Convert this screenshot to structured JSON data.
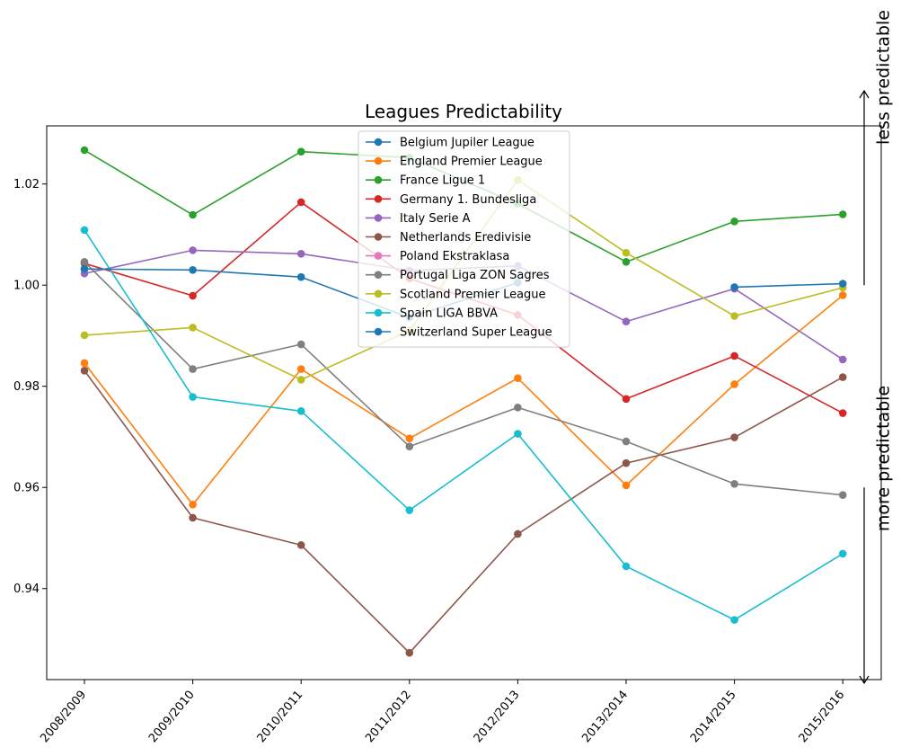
{
  "chart_data": {
    "type": "line",
    "title": "Leagues Predictability",
    "xlabel": "",
    "ylabel": "",
    "categories": [
      "2008/2009",
      "2009/2010",
      "2010/2011",
      "2011/2012",
      "2012/2013",
      "2013/2014",
      "2014/2015",
      "2015/2016"
    ],
    "ylim": [
      0.922,
      1.0315
    ],
    "yticks": [
      0.94,
      0.96,
      0.98,
      1.0,
      1.02
    ],
    "ytick_labels": [
      "0.94",
      "0.96",
      "0.98",
      "1.00",
      "1.02"
    ],
    "grid": false,
    "legend_position": "upper-center",
    "annotations": [
      {
        "text": "less predictable",
        "direction": "up",
        "from": 1.0,
        "to": 1.0315
      },
      {
        "text": "more predictable",
        "direction": "down",
        "from": 0.96,
        "to": 0.922
      }
    ],
    "series": [
      {
        "name": "Belgium Jupiler League",
        "color": "#1f77b4",
        "values": [
          1.0032,
          null,
          null,
          null,
          null,
          null,
          null,
          null
        ]
      },
      {
        "name": "England Premier League",
        "color": "#ff7f0e",
        "values": [
          0.9846,
          0.9566,
          0.9834,
          0.9697,
          0.9816,
          0.9604,
          0.9804,
          0.998
        ]
      },
      {
        "name": "France Ligue 1",
        "color": "#2ca02c",
        "values": [
          1.0267,
          1.0139,
          1.0264,
          1.0252,
          1.0161,
          1.0046,
          1.0126,
          1.014
        ]
      },
      {
        "name": "Germany 1. Bundesliga",
        "color": "#d62728",
        "values": [
          1.0043,
          0.9979,
          1.0164,
          1.0013,
          0.9941,
          0.9775,
          0.986,
          0.9747
        ]
      },
      {
        "name": "Italy Serie A",
        "color": "#9467bd",
        "values": [
          1.0023,
          1.0069,
          1.0062,
          1.0029,
          1.0038,
          0.9928,
          0.9993,
          0.9853
        ]
      },
      {
        "name": "Netherlands Eredivisie",
        "color": "#8c564b",
        "values": [
          0.9831,
          0.954,
          0.9486,
          0.9273,
          0.9508,
          0.9648,
          0.9699,
          0.9818
        ]
      },
      {
        "name": "Poland Ekstraklasa",
        "color": "#e377c2",
        "values": [
          null,
          null,
          null,
          null,
          null,
          null,
          null,
          null
        ]
      },
      {
        "name": "Portugal Liga ZON Sagres",
        "color": "#7f7f7f",
        "values": [
          1.0046,
          0.9834,
          0.9883,
          0.9681,
          0.9758,
          0.9691,
          0.9607,
          0.9585
        ]
      },
      {
        "name": "Scotland Premier League",
        "color": "#bcbd22",
        "values": [
          0.9901,
          0.9916,
          0.9813,
          0.991,
          1.0208,
          1.0064,
          0.9939,
          0.9995
        ]
      },
      {
        "name": "Spain LIGA BBVA",
        "color": "#17becf",
        "values": [
          1.0109,
          0.9779,
          0.9751,
          0.9555,
          0.9706,
          0.9444,
          0.9338,
          0.9469
        ]
      },
      {
        "name": "Switzerland Super League",
        "color": "#1f77b4",
        "values": [
          1.0032,
          1.003,
          1.0016,
          0.9936,
          1.0005,
          null,
          0.9996,
          1.0003
        ]
      }
    ]
  }
}
